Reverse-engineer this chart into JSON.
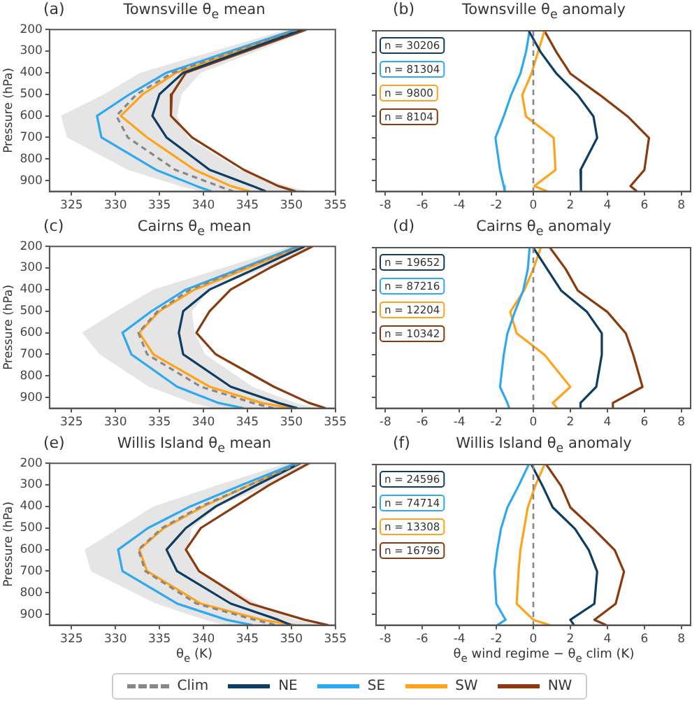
{
  "chart_data": [
    {
      "type": "line",
      "orientation": "horizontal",
      "title": "Townsville θ$_{e}$ mean",
      "ylabel": "Pressure (hPa)",
      "annotations": [
        "(a)"
      ],
      "legend": "bottom",
      "x": [
        200,
        300,
        400,
        500,
        600,
        700,
        850,
        925,
        950
      ],
      "xlim": [
        322.5,
        355
      ],
      "xticks": [
        325,
        330,
        335,
        340,
        345,
        350,
        355
      ],
      "ylim": [
        950,
        200
      ],
      "yticks": [
        200,
        300,
        400,
        500,
        600,
        700,
        800,
        900
      ],
      "series": [
        {
          "name": "Clim",
          "color": "#888888",
          "line_style": "dashed",
          "values": [
            350.7,
            343.6,
            336.5,
            332.4,
            330.1,
            331.4,
            336.8,
            341.7,
            343.4
          ],
          "lower": [
            349.5,
            341.2,
            332.8,
            328.7,
            323.8,
            324.5,
            331.4,
            337.3,
            339.7
          ],
          "upper": [
            352.2,
            346.1,
            339.7,
            337.5,
            337.0,
            338.2,
            344.1,
            349.5,
            352.0
          ]
        },
        {
          "name": "NE",
          "color": "#0d3d63",
          "values": [
            351.2,
            344.5,
            337.7,
            335.0,
            334.2,
            335.8,
            340.7,
            345.6,
            347.1
          ]
        },
        {
          "name": "SE",
          "color": "#2ea9f0",
          "values": [
            350.5,
            343.1,
            335.8,
            331.6,
            327.9,
            328.4,
            334.6,
            339.2,
            340.9
          ]
        },
        {
          "name": "SW",
          "color": "#ffa31a",
          "values": [
            351.0,
            343.9,
            336.9,
            333.1,
            330.6,
            333.6,
            339.0,
            343.1,
            345.3
          ]
        },
        {
          "name": "NW",
          "color": "#8b3a0e",
          "values": [
            351.7,
            344.9,
            338.0,
            336.4,
            336.3,
            338.7,
            344.6,
            348.5,
            350.5
          ]
        }
      ]
    },
    {
      "type": "line",
      "orientation": "horizontal",
      "title": "Townsville θ$_{e}$ anomaly",
      "annotations": [
        "(b)",
        "n = 30206",
        "n = 81304",
        "n = 9800",
        "n = 8104"
      ],
      "x": [
        200,
        300,
        400,
        500,
        600,
        700,
        850,
        925,
        950
      ],
      "xlim": [
        -8.5,
        8.5
      ],
      "xticks": [
        -8,
        -6,
        -4,
        -2,
        0,
        2,
        4,
        6,
        8
      ],
      "ylim": [
        950,
        200
      ],
      "yticks": [
        200,
        300,
        400,
        500,
        600,
        700,
        800,
        900
      ],
      "tick_labels": "x",
      "ref_lines": [
        {
          "axis": "x",
          "value": 0,
          "color": "#888888",
          "line_style": "dashed"
        }
      ],
      "series": [
        {
          "color": "#0d3d63",
          "values": [
            -0.25,
            0.4,
            1.25,
            2.4,
            3.25,
            3.45,
            2.55,
            2.55,
            2.6
          ]
        },
        {
          "color": "#2ea9f0",
          "values": [
            -0.2,
            -0.4,
            -0.7,
            -1.2,
            -1.6,
            -2.05,
            -1.8,
            -1.6,
            -1.55
          ]
        },
        {
          "color": "#ffa31a",
          "values": [
            0.6,
            0.25,
            -0.1,
            -0.6,
            -0.4,
            1.1,
            1.2,
            0.05,
            0.75
          ]
        },
        {
          "color": "#8b3a0e",
          "values": [
            0.6,
            1.25,
            2.0,
            3.6,
            5.1,
            6.25,
            6.0,
            5.25,
            5.6
          ]
        }
      ]
    },
    {
      "type": "line",
      "orientation": "horizontal",
      "title": "Cairns θ$_{e}$ mean",
      "ylabel": "Pressure (hPa)",
      "annotations": [
        "(c)"
      ],
      "x": [
        200,
        300,
        400,
        500,
        600,
        700,
        850,
        925,
        950
      ],
      "xlim": [
        322.5,
        355
      ],
      "xticks": [
        325,
        330,
        335,
        340,
        345,
        350,
        355
      ],
      "ylim": [
        950,
        200
      ],
      "yticks": [
        200,
        300,
        400,
        500,
        600,
        700,
        800,
        900
      ],
      "series": [
        {
          "color": "#888888",
          "line_style": "dashed",
          "values": [
            351.0,
            344.6,
            338.5,
            334.8,
            332.6,
            333.6,
            339.7,
            345.6,
            348.0
          ],
          "lower": [
            349.8,
            342.2,
            334.3,
            330.1,
            326.2,
            328.2,
            333.8,
            338.7,
            341.2
          ],
          "upper": [
            352.5,
            347.1,
            340.7,
            338.7,
            339.0,
            340.2,
            345.6,
            350.5,
            352.9
          ]
        },
        {
          "color": "#0d3d63",
          "values": [
            351.5,
            346.1,
            340.7,
            337.7,
            337.2,
            337.7,
            343.1,
            348.5,
            350.7
          ]
        },
        {
          "color": "#2ea9f0",
          "values": [
            350.7,
            344.4,
            338.0,
            334.1,
            330.8,
            331.8,
            337.0,
            341.7,
            344.6
          ]
        },
        {
          "color": "#ffa31a",
          "values": [
            351.2,
            345.1,
            339.0,
            335.0,
            332.7,
            334.3,
            340.7,
            346.6,
            350.0
          ]
        },
        {
          "color": "#8b3a0e",
          "values": [
            352.4,
            347.5,
            343.1,
            340.7,
            339.2,
            341.4,
            348.0,
            352.0,
            353.9
          ]
        }
      ]
    },
    {
      "type": "line",
      "orientation": "horizontal",
      "title": "Cairns θ$_{e}$ anomaly",
      "annotations": [
        "(d)",
        "n = 19652",
        "n = 87216",
        "n = 12204",
        "n = 10342"
      ],
      "x": [
        200,
        300,
        400,
        500,
        600,
        700,
        850,
        925,
        950
      ],
      "xlim": [
        -8.5,
        8.5
      ],
      "xticks": [
        -8,
        -6,
        -4,
        -2,
        0,
        2,
        4,
        6,
        8
      ],
      "ylim": [
        950,
        200
      ],
      "yticks": [
        200,
        300,
        400,
        500,
        600,
        700,
        800,
        900
      ],
      "tick_labels": "x",
      "ref_lines": [
        {
          "axis": "x",
          "value": 0,
          "color": "#888888",
          "line_style": "dashed"
        }
      ],
      "series": [
        {
          "color": "#0d3d63",
          "values": [
            0,
            0.75,
            1.5,
            2.9,
            3.7,
            3.7,
            3.4,
            2.55,
            2.55
          ]
        },
        {
          "color": "#2ea9f0",
          "values": [
            -0.2,
            -0.3,
            -0.55,
            -1.0,
            -1.4,
            -1.6,
            -1.8,
            -1.4,
            -1.3
          ]
        },
        {
          "color": "#ffa31a",
          "values": [
            0.4,
            0,
            -0.5,
            -1.25,
            -0.9,
            0.6,
            2.0,
            1.05,
            1.3
          ]
        },
        {
          "color": "#8b3a0e",
          "values": [
            0.9,
            1.75,
            2.4,
            4.0,
            5.0,
            5.4,
            5.9,
            4.3,
            4.3
          ]
        }
      ]
    },
    {
      "type": "line",
      "orientation": "horizontal",
      "title": "Willis Island θ$_{e}$ mean",
      "xlabel": "θ$_{e}$ (K)",
      "ylabel": "Pressure (hPa)",
      "annotations": [
        "(e)"
      ],
      "x": [
        200,
        300,
        400,
        500,
        600,
        700,
        850,
        925,
        950
      ],
      "xlim": [
        322.5,
        355
      ],
      "xticks": [
        325,
        330,
        335,
        340,
        345,
        350,
        355
      ],
      "ylim": [
        950,
        200
      ],
      "yticks": [
        200,
        300,
        400,
        500,
        600,
        700,
        800,
        900
      ],
      "series": [
        {
          "color": "#888888",
          "line_style": "dashed",
          "values": [
            350.9,
            345.3,
            339.7,
            335.3,
            332.6,
            333.4,
            339.2,
            345.8,
            348.3
          ],
          "lower": [
            349.5,
            341.7,
            334.3,
            330.4,
            326.5,
            327.2,
            334.6,
            340.2,
            342.4
          ],
          "upper": [
            352.5,
            347.5,
            341.7,
            338.7,
            338.2,
            339.7,
            346.1,
            350.5,
            353.4
          ]
        },
        {
          "color": "#0d3d63",
          "values": [
            351.0,
            346.1,
            341.4,
            338.0,
            335.8,
            337.0,
            343.1,
            348.5,
            350.0
          ]
        },
        {
          "color": "#2ea9f0",
          "values": [
            350.5,
            344.4,
            338.5,
            333.7,
            330.3,
            330.8,
            337.0,
            342.6,
            345.6
          ]
        },
        {
          "color": "#ffa31a",
          "values": [
            350.7,
            345.3,
            340.0,
            335.5,
            332.7,
            333.6,
            339.7,
            346.6,
            350.5
          ]
        },
        {
          "color": "#8b3a0e",
          "values": [
            352.0,
            347.5,
            343.6,
            339.7,
            338.0,
            339.5,
            345.3,
            351.5,
            354.2
          ]
        }
      ]
    },
    {
      "type": "line",
      "orientation": "horizontal",
      "title": "Willis Island θ$_{e}$ anomaly",
      "xlabel": "θ$_{e}$ wind regime − θ$_{e}$ clim (K)",
      "annotations": [
        "(f)",
        "n = 24596",
        "n = 74714",
        "n = 13308",
        "n = 16796"
      ],
      "x": [
        200,
        300,
        400,
        500,
        600,
        700,
        850,
        925,
        950
      ],
      "xlim": [
        -8.5,
        8.5
      ],
      "xticks": [
        -8,
        -6,
        -4,
        -2,
        0,
        2,
        4,
        6,
        8
      ],
      "ylim": [
        950,
        200
      ],
      "yticks": [
        200,
        300,
        400,
        500,
        600,
        700,
        800,
        900
      ],
      "tick_labels": "x",
      "ref_lines": [
        {
          "axis": "x",
          "value": 0,
          "color": "#888888",
          "line_style": "dashed"
        }
      ],
      "series": [
        {
          "color": "#0d3d63",
          "values": [
            -0.1,
            0.5,
            1.05,
            2.25,
            3.0,
            3.45,
            3.3,
            2.0,
            2.2
          ]
        },
        {
          "color": "#2ea9f0",
          "values": [
            -0.25,
            -0.8,
            -1.4,
            -1.75,
            -1.95,
            -2.1,
            -2.0,
            -1.5,
            -1.95
          ]
        },
        {
          "color": "#ffa31a",
          "values": [
            0.6,
            0.1,
            -0.3,
            -0.5,
            -0.7,
            -0.8,
            -0.9,
            0,
            0.9
          ]
        },
        {
          "color": "#8b3a0e",
          "values": [
            0.7,
            1.5,
            2.0,
            3.25,
            4.4,
            4.9,
            4.45,
            3.3,
            3.95
          ]
        }
      ]
    }
  ]
}
